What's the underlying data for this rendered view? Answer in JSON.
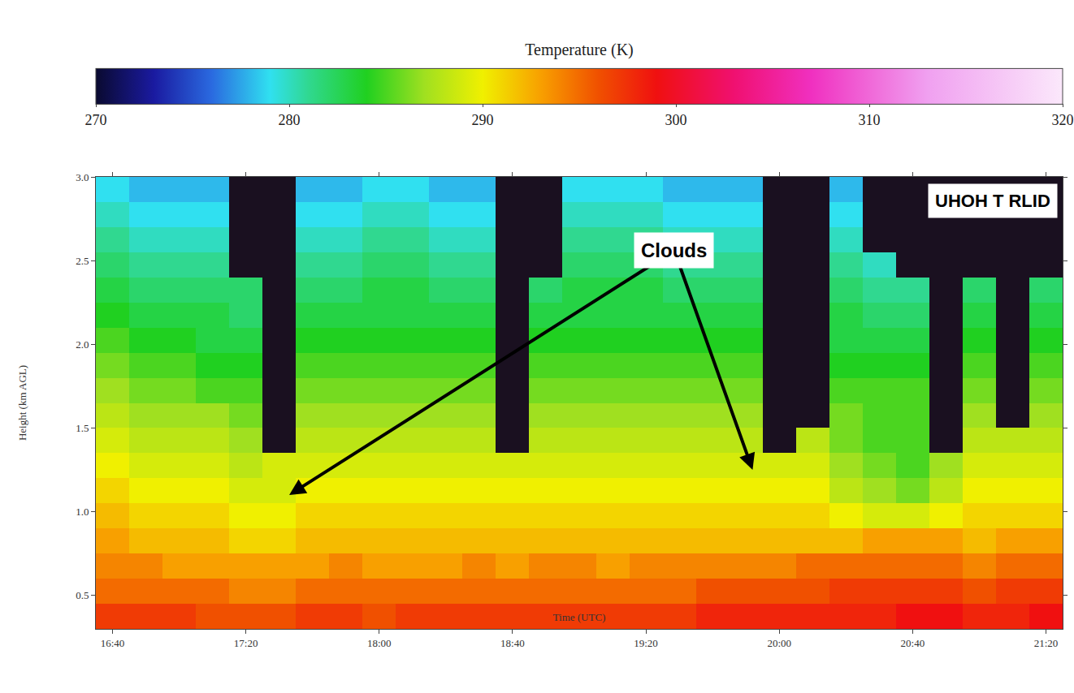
{
  "chart_data": {
    "type": "heatmap",
    "x_label": "Time (UTC)",
    "y_label": "Height (km AGL)",
    "colorbar_title": "Temperature (K)",
    "categories": [
      "16:40",
      null,
      null,
      null,
      "17:20",
      null,
      null,
      null,
      "18:00",
      null,
      null,
      null,
      "18:40",
      null,
      null,
      null,
      "19:20",
      null,
      null,
      null,
      "20:00",
      null,
      null,
      null,
      "20:40",
      null,
      null,
      null,
      "21:20"
    ],
    "y": [
      0.375,
      0.525,
      0.675,
      0.825,
      0.975,
      1.125,
      1.275,
      1.425,
      1.575,
      1.725,
      1.875,
      2.025,
      2.175,
      2.325,
      2.475,
      2.625,
      2.775,
      2.925
    ],
    "cells": [
      [
        297,
        297,
        297,
        296,
        296,
        296,
        297,
        297,
        296,
        297,
        297,
        297,
        297,
        297,
        297,
        297,
        297,
        297,
        298,
        298,
        298,
        298,
        298,
        298,
        299,
        299,
        298,
        298,
        299
      ],
      [
        295,
        295,
        295,
        295,
        294,
        294,
        295,
        295,
        295,
        295,
        295,
        295,
        295,
        295,
        295,
        295,
        295,
        295,
        296,
        296,
        296,
        296,
        297,
        297,
        297,
        297,
        296,
        297,
        297
      ],
      [
        294,
        294,
        293,
        293,
        293,
        293,
        293,
        294,
        293,
        293,
        293,
        294,
        293,
        294,
        294,
        293,
        294,
        294,
        294,
        294,
        294,
        295,
        295,
        295,
        295,
        295,
        294,
        295,
        295
      ],
      [
        293,
        292,
        292,
        292,
        291,
        291,
        292,
        292,
        292,
        292,
        292,
        292,
        292,
        292,
        292,
        292,
        292,
        292,
        292,
        292,
        292,
        292,
        292,
        293,
        293,
        293,
        292,
        293,
        293
      ],
      [
        292,
        291,
        291,
        291,
        290,
        290,
        291,
        291,
        291,
        291,
        291,
        291,
        291,
        291,
        291,
        291,
        291,
        291,
        291,
        291,
        291,
        291,
        290,
        289,
        289,
        290,
        291,
        291,
        291
      ],
      [
        291,
        290,
        290,
        290,
        289,
        289,
        290,
        290,
        290,
        290,
        290,
        290,
        290,
        290,
        290,
        290,
        290,
        290,
        290,
        290,
        290,
        290,
        288,
        287,
        286,
        288,
        290,
        290,
        290
      ],
      [
        290,
        289,
        289,
        289,
        288,
        289,
        289,
        289,
        289,
        289,
        289,
        289,
        289,
        289,
        289,
        289,
        289,
        289,
        289,
        289,
        289,
        289,
        287,
        286,
        285,
        287,
        289,
        289,
        289
      ],
      [
        289,
        288,
        288,
        288,
        287,
        null,
        288,
        288,
        288,
        288,
        288,
        288,
        null,
        288,
        288,
        288,
        288,
        288,
        288,
        288,
        null,
        288,
        286,
        285,
        285,
        null,
        288,
        288,
        288
      ],
      [
        288,
        287,
        287,
        287,
        286,
        null,
        287,
        287,
        287,
        287,
        287,
        287,
        null,
        287,
        287,
        287,
        287,
        287,
        287,
        287,
        null,
        null,
        286,
        285,
        285,
        null,
        287,
        null,
        287
      ],
      [
        287,
        286,
        286,
        285,
        285,
        null,
        286,
        286,
        286,
        286,
        286,
        286,
        null,
        286,
        286,
        286,
        286,
        286,
        286,
        286,
        null,
        null,
        285,
        285,
        285,
        null,
        286,
        null,
        286
      ],
      [
        286,
        285,
        285,
        284,
        284,
        null,
        285,
        285,
        285,
        285,
        285,
        285,
        null,
        285,
        285,
        285,
        285,
        285,
        285,
        285,
        null,
        null,
        284,
        284,
        284,
        null,
        285,
        null,
        285
      ],
      [
        285,
        284,
        284,
        283,
        283,
        null,
        284,
        284,
        284,
        284,
        284,
        284,
        null,
        284,
        284,
        284,
        284,
        284,
        284,
        284,
        null,
        null,
        283,
        283,
        283,
        null,
        284,
        null,
        284
      ],
      [
        284,
        283,
        283,
        283,
        282,
        null,
        283,
        283,
        283,
        283,
        283,
        283,
        null,
        283,
        283,
        283,
        283,
        283,
        283,
        283,
        null,
        null,
        283,
        282,
        282,
        null,
        283,
        null,
        283
      ],
      [
        283,
        282,
        282,
        282,
        282,
        null,
        282,
        282,
        283,
        283,
        282,
        282,
        null,
        282,
        283,
        283,
        283,
        282,
        282,
        282,
        null,
        null,
        282,
        281,
        281,
        null,
        282,
        null,
        282
      ],
      [
        282,
        281,
        281,
        281,
        null,
        null,
        281,
        281,
        282,
        282,
        281,
        281,
        null,
        null,
        282,
        282,
        282,
        281,
        281,
        281,
        null,
        null,
        281,
        280,
        null,
        null,
        null,
        null,
        null
      ],
      [
        281,
        280,
        280,
        280,
        null,
        null,
        280,
        280,
        281,
        281,
        280,
        280,
        null,
        null,
        281,
        281,
        281,
        280,
        280,
        280,
        null,
        null,
        280,
        null,
        null,
        null,
        null,
        null,
        null
      ],
      [
        280,
        279,
        279,
        279,
        null,
        null,
        279,
        279,
        280,
        280,
        279,
        279,
        null,
        null,
        280,
        280,
        280,
        279,
        279,
        279,
        null,
        null,
        279,
        null,
        null,
        null,
        null,
        null,
        null
      ],
      [
        279,
        278,
        278,
        278,
        null,
        null,
        278,
        278,
        279,
        279,
        278,
        278,
        null,
        null,
        279,
        279,
        279,
        278,
        278,
        278,
        null,
        null,
        278,
        null,
        null,
        null,
        null,
        null,
        null
      ]
    ],
    "ylim": [
      0.3,
      3.0
    ],
    "yticks": [
      0.5,
      {
        "value": 1,
        "label": "1.0"
      },
      1.5,
      {
        "value": 2,
        "label": "2.0"
      },
      2.5,
      {
        "value": 3,
        "label": "3.0"
      }
    ],
    "color_range": [
      270,
      320
    ],
    "color_ticks": [
      270,
      280,
      290,
      300,
      310,
      320
    ],
    "grid": false,
    "annotations": [
      {
        "text": "Clouds",
        "arrows_to": [
          {
            "x": 5.3,
            "y": 1.1
          },
          {
            "x": 19.2,
            "y": 1.25
          }
        ]
      },
      {
        "text": "UHOH T RLID"
      }
    ]
  }
}
